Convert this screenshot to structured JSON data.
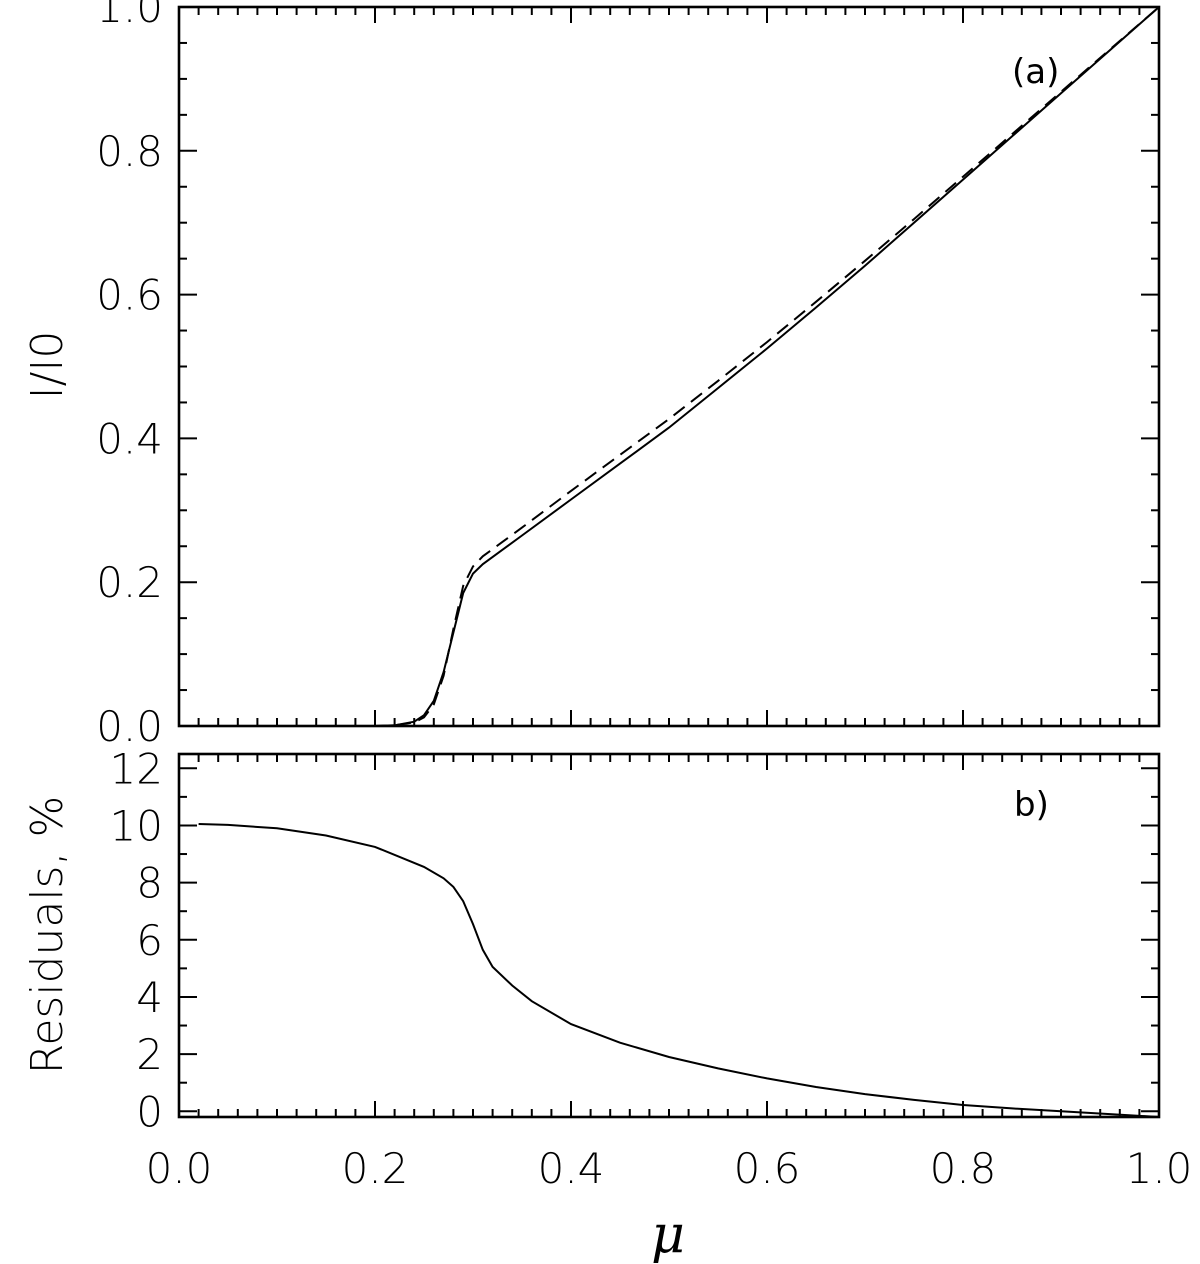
{
  "chart_data": [
    {
      "type": "line",
      "panel_label": "(a)",
      "xlabel": "",
      "ylabel": "I/I0",
      "xlim": [
        0.0,
        1.0
      ],
      "ylim": [
        0.0,
        1.0
      ],
      "yticks": [
        0.0,
        0.2,
        0.4,
        0.6,
        0.8,
        1.0
      ],
      "ytick_labels": [
        "0.0",
        "0.2",
        "0.4",
        "0.6",
        "0.8",
        "1.0"
      ],
      "series": [
        {
          "style": "solid",
          "x": [
            0.2,
            0.22,
            0.24,
            0.25,
            0.26,
            0.27,
            0.28,
            0.29,
            0.3,
            0.31,
            0.33,
            0.35,
            0.4,
            0.45,
            0.5,
            0.55,
            0.6,
            0.65,
            0.7,
            0.75,
            0.8,
            0.85,
            0.9,
            0.95,
            1.0
          ],
          "y": [
            0.0,
            0.001,
            0.006,
            0.015,
            0.035,
            0.075,
            0.13,
            0.185,
            0.212,
            0.225,
            0.245,
            0.265,
            0.315,
            0.365,
            0.415,
            0.47,
            0.525,
            0.582,
            0.64,
            0.7,
            0.76,
            0.82,
            0.88,
            0.94,
            1.0
          ]
        },
        {
          "style": "dashed",
          "x": [
            0.2,
            0.22,
            0.24,
            0.25,
            0.26,
            0.27,
            0.28,
            0.29,
            0.3,
            0.31,
            0.33,
            0.35,
            0.4,
            0.45,
            0.5,
            0.55,
            0.6,
            0.65,
            0.7,
            0.75,
            0.8,
            0.85,
            0.9,
            0.95,
            1.0
          ],
          "y": [
            0.0,
            0.001,
            0.005,
            0.012,
            0.03,
            0.07,
            0.135,
            0.195,
            0.222,
            0.236,
            0.256,
            0.276,
            0.327,
            0.377,
            0.427,
            0.48,
            0.534,
            0.59,
            0.647,
            0.705,
            0.764,
            0.823,
            0.882,
            0.941,
            1.0
          ]
        }
      ]
    },
    {
      "type": "line",
      "panel_label": "b)",
      "xlabel": "μ",
      "ylabel": "Residuals, %",
      "xlim": [
        0.0,
        1.0
      ],
      "ylim": [
        -0.2,
        12.5
      ],
      "yticks": [
        0,
        2,
        4,
        6,
        8,
        10,
        12
      ],
      "ytick_labels": [
        "0",
        "2",
        "4",
        "6",
        "8",
        "10",
        "12"
      ],
      "xticks": [
        0.0,
        0.2,
        0.4,
        0.6,
        0.8,
        1.0
      ],
      "xtick_labels": [
        "0.0",
        "0.2",
        "0.4",
        "0.6",
        "0.8",
        "1.0"
      ],
      "series": [
        {
          "style": "solid",
          "x": [
            0.02,
            0.05,
            0.1,
            0.15,
            0.2,
            0.25,
            0.27,
            0.28,
            0.29,
            0.3,
            0.31,
            0.32,
            0.34,
            0.36,
            0.4,
            0.45,
            0.5,
            0.55,
            0.6,
            0.65,
            0.7,
            0.75,
            0.8,
            0.85,
            0.9,
            0.95,
            1.0
          ],
          "y": [
            10.05,
            10.02,
            9.9,
            9.65,
            9.25,
            8.55,
            8.15,
            7.85,
            7.35,
            6.55,
            5.65,
            5.05,
            4.4,
            3.85,
            3.05,
            2.4,
            1.9,
            1.5,
            1.15,
            0.85,
            0.6,
            0.4,
            0.22,
            0.1,
            0.0,
            -0.1,
            -0.2
          ]
        }
      ]
    }
  ]
}
